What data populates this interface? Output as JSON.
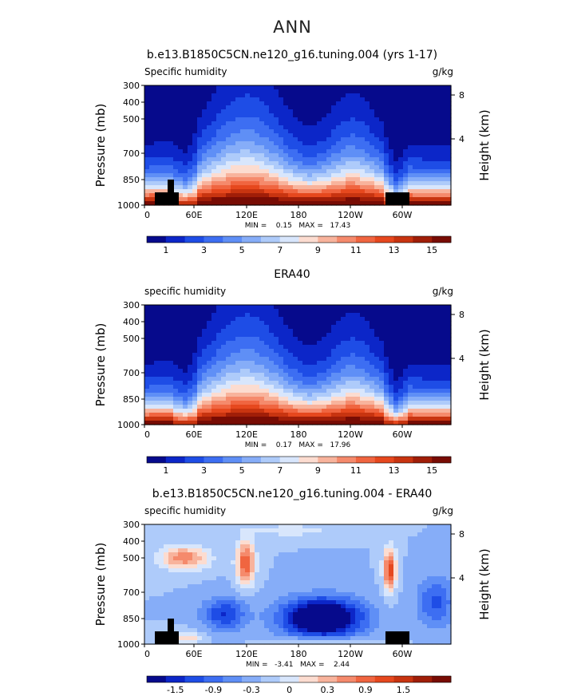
{
  "page": {
    "title": "ANN"
  },
  "chart_data": [
    {
      "type": "heatmap",
      "title": "b.e13.B1850C5CN.ne120_g16.tuning.004 (yrs 1-17)",
      "variable_label": "Specific humidity",
      "units": "g/kg",
      "ylabel": "Pressure (mb)",
      "ylabel_right": "Height (km)",
      "y_ticks": [
        "300",
        "400",
        "500",
        "700",
        "850",
        "1000"
      ],
      "y_right_ticks": [
        "8",
        "4"
      ],
      "x_ticks": [
        "0",
        "60E",
        "120E",
        "180",
        "120W",
        "60W"
      ],
      "xlim": [
        0,
        360
      ],
      "ylim": [
        1000,
        300
      ],
      "min_text": "MIN =    0.15   MAX =   17.43",
      "stats": {
        "min": 0.15,
        "max": 17.43
      },
      "colorbar_labels": [
        "1",
        "3",
        "5",
        "7",
        "9",
        "11",
        "13",
        "15"
      ],
      "colorbar_colors": [
        "#060a8c",
        "#0c26c8",
        "#1e4de6",
        "#3d6ef2",
        "#5f8ff6",
        "#86adf8",
        "#aecbfa",
        "#d8e6fc",
        "#fcdcd0",
        "#f8b39c",
        "#f58a6c",
        "#f06540",
        "#e6481e",
        "#c83410",
        "#a01e08",
        "#780c04"
      ],
      "field": "moisture"
    },
    {
      "type": "heatmap",
      "title": "ERA40",
      "variable_label": "specific humidity",
      "units": "g/kg",
      "ylabel": "Pressure (mb)",
      "ylabel_right": "Height (km)",
      "y_ticks": [
        "300",
        "400",
        "500",
        "700",
        "850",
        "1000"
      ],
      "y_right_ticks": [
        "8",
        "4"
      ],
      "x_ticks": [
        "0",
        "60E",
        "120E",
        "180",
        "120W",
        "60W"
      ],
      "xlim": [
        0,
        360
      ],
      "ylim": [
        1000,
        300
      ],
      "min_text": "MIN =    0.17   MAX =   17.96",
      "stats": {
        "min": 0.17,
        "max": 17.96
      },
      "colorbar_labels": [
        "1",
        "3",
        "5",
        "7",
        "9",
        "11",
        "13",
        "15"
      ],
      "colorbar_colors": [
        "#060a8c",
        "#0c26c8",
        "#1e4de6",
        "#3d6ef2",
        "#5f8ff6",
        "#86adf8",
        "#aecbfa",
        "#d8e6fc",
        "#fcdcd0",
        "#f8b39c",
        "#f58a6c",
        "#f06540",
        "#e6481e",
        "#c83410",
        "#a01e08",
        "#780c04"
      ],
      "field": "moisture"
    },
    {
      "type": "heatmap",
      "title": "b.e13.B1850C5CN.ne120_g16.tuning.004 - ERA40",
      "variable_label": "specific humidity",
      "units": "g/kg",
      "ylabel": "Pressure (mb)",
      "ylabel_right": "Height (km)",
      "y_ticks": [
        "300",
        "400",
        "500",
        "700",
        "850",
        "1000"
      ],
      "y_right_ticks": [
        "8",
        "4"
      ],
      "x_ticks": [
        "0",
        "60E",
        "120E",
        "180",
        "120W",
        "60W"
      ],
      "xlim": [
        0,
        360
      ],
      "ylim": [
        1000,
        300
      ],
      "min_text": "MIN =   -3.41   MAX =    2.44",
      "stats": {
        "min": -3.41,
        "max": 2.44
      },
      "colorbar_labels": [
        "-1.5",
        "-0.9",
        "-0.3",
        "0",
        "0.3",
        "0.9",
        "1.5"
      ],
      "colorbar_colors": [
        "#060a8c",
        "#0c26c8",
        "#1e4de6",
        "#3d6ef2",
        "#5f8ff6",
        "#86adf8",
        "#aecbfa",
        "#d8e6fc",
        "#fcdcd0",
        "#f8b39c",
        "#f58a6c",
        "#f06540",
        "#e6481e",
        "#c83410",
        "#a01e08",
        "#780c04"
      ],
      "field": "difference"
    }
  ]
}
